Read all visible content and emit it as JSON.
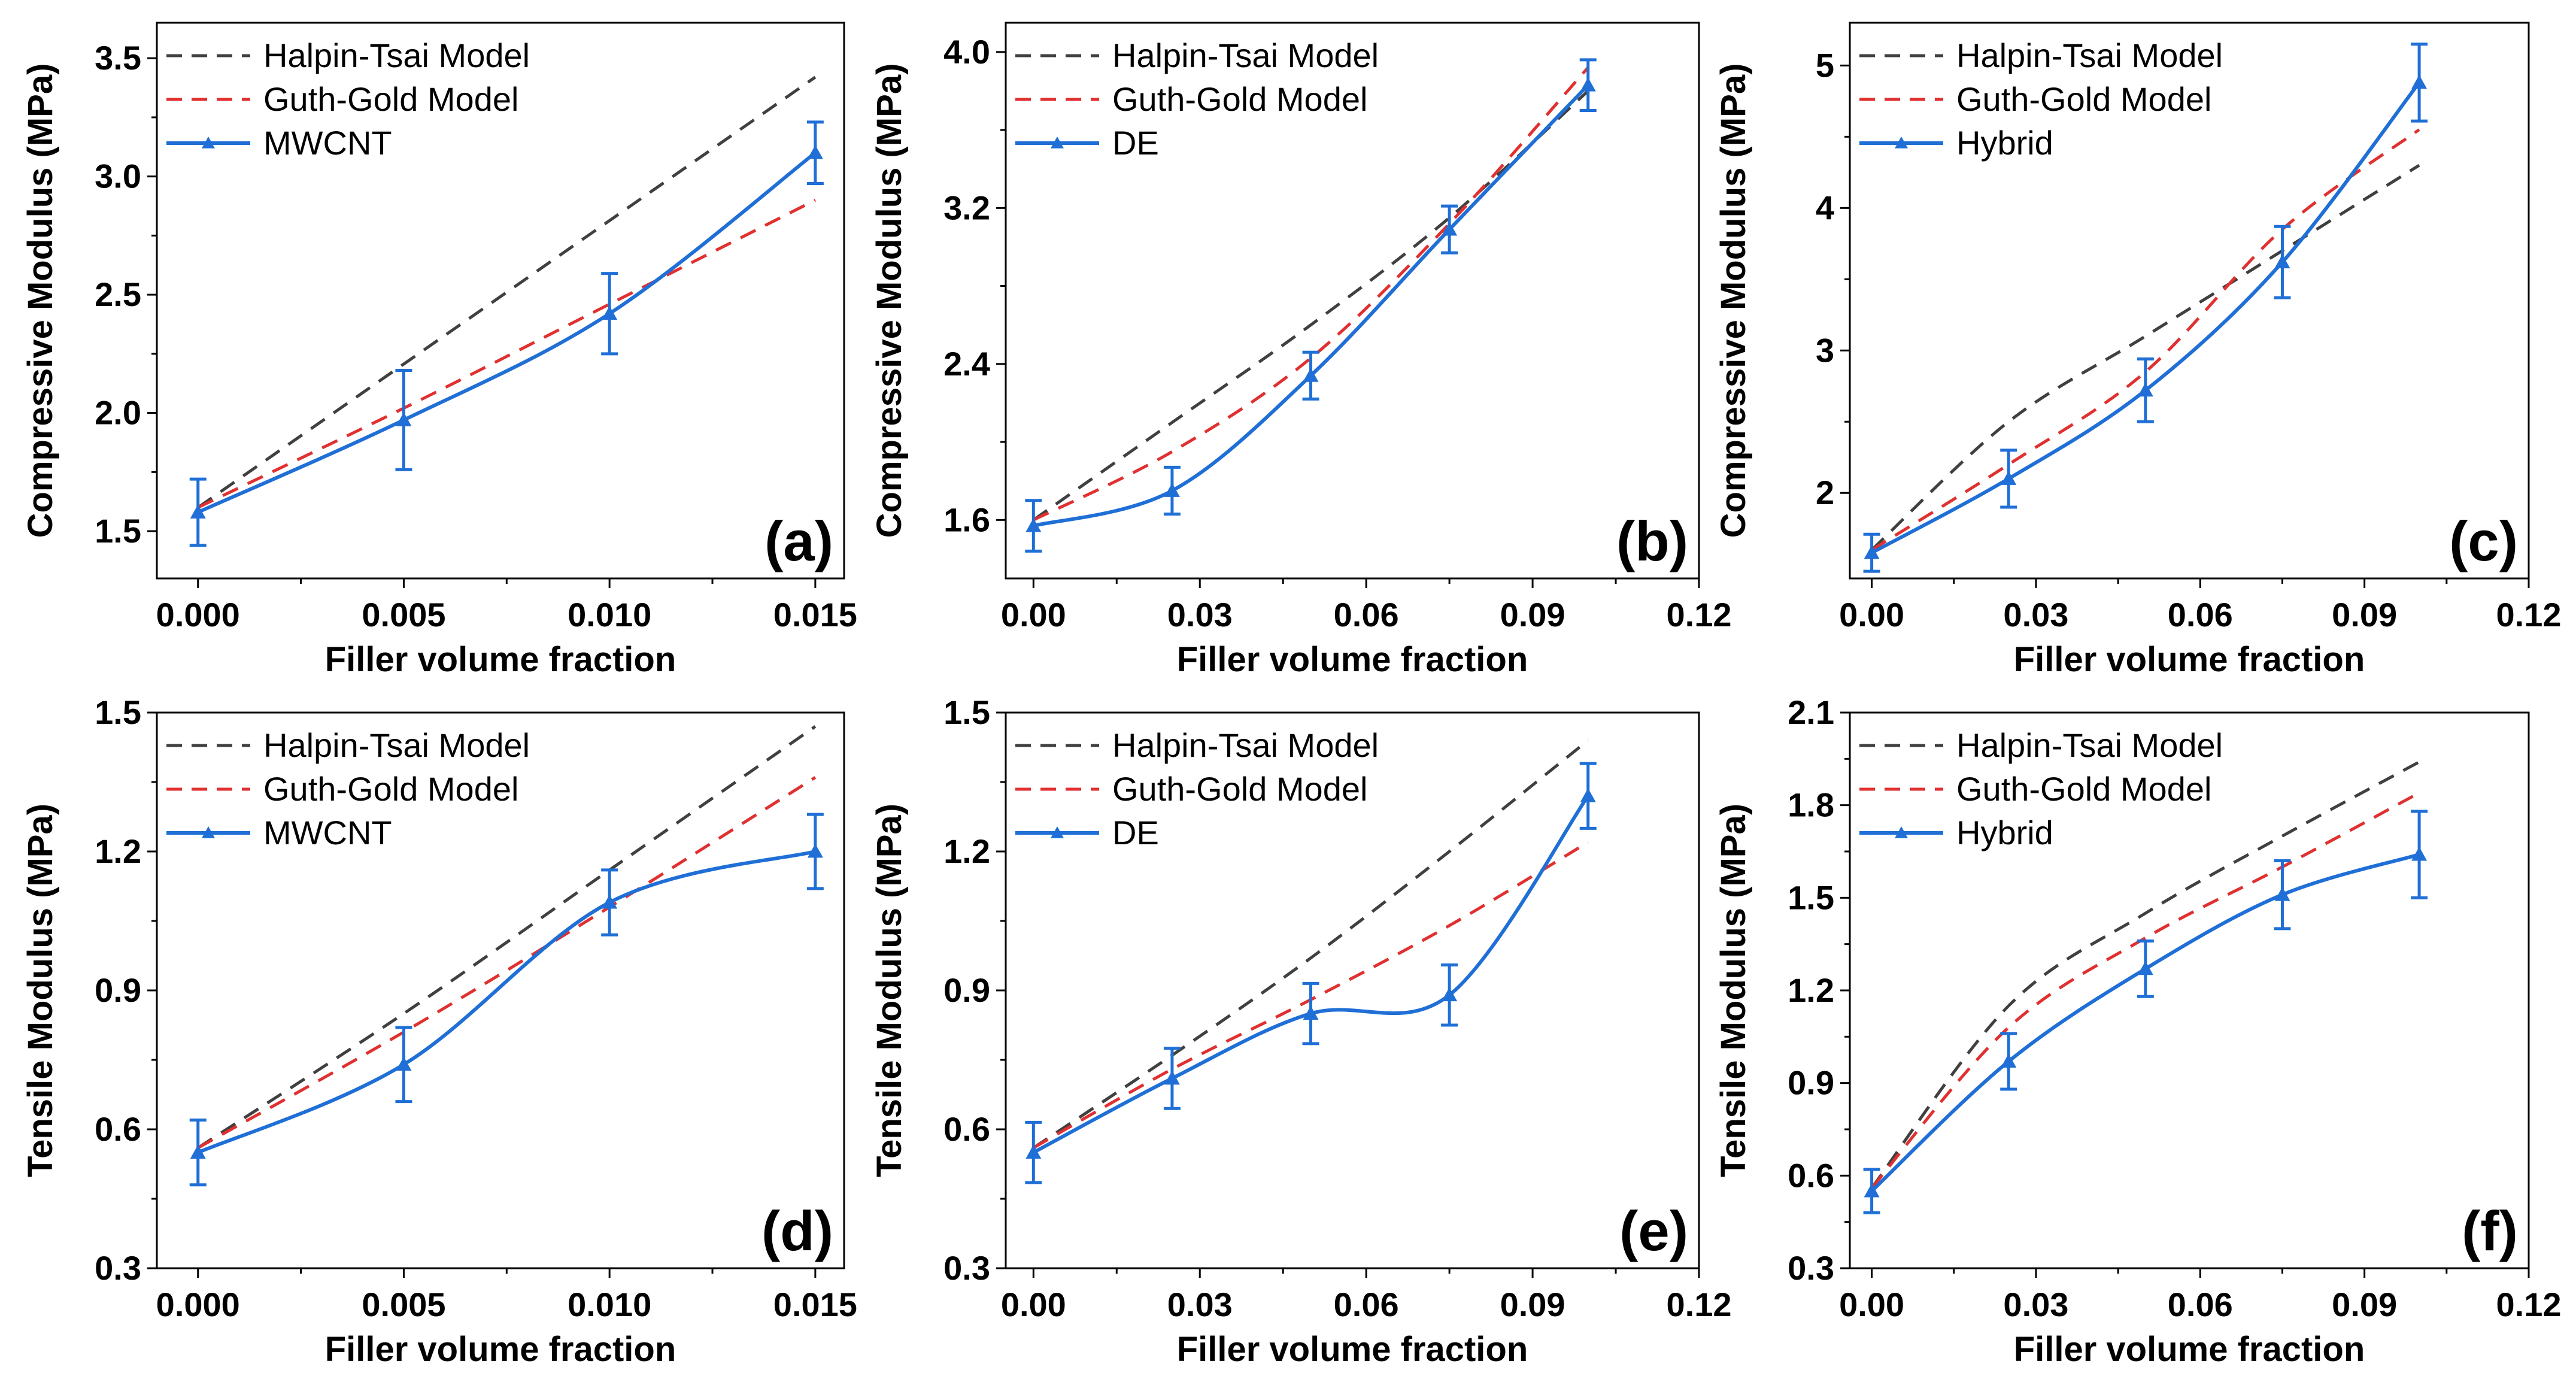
{
  "colors": {
    "halpin": "#404040",
    "guth": "#e03030",
    "data": "#1f6fd6",
    "axis": "#000000"
  },
  "chart_data": [
    {
      "type": "line",
      "panel": "(a)",
      "xlabel": "Filler volume fraction",
      "ylabel": "Compressive Modulus (MPa)",
      "xlim": [
        -0.001,
        0.0157
      ],
      "ylim": [
        1.3,
        3.65
      ],
      "xticks": [
        0.0,
        0.005,
        0.01,
        0.015
      ],
      "xtick_labels": [
        "0.000",
        "0.005",
        "0.010",
        "0.015"
      ],
      "yticks": [
        1.5,
        2.0,
        2.5,
        3.0,
        3.5
      ],
      "ytick_labels": [
        "1.5",
        "2.0",
        "2.5",
        "3.0",
        "3.5"
      ],
      "legend": [
        "Halpin-Tsai Model",
        "Guth-Gold Model",
        "MWCNT"
      ],
      "halpin": {
        "x": [
          0,
          0.015
        ],
        "y": [
          1.6,
          3.42
        ]
      },
      "guth": {
        "x": [
          0,
          0.005,
          0.01,
          0.015
        ],
        "y": [
          1.6,
          2.02,
          2.46,
          2.9
        ]
      },
      "data": {
        "x": [
          0,
          0.005,
          0.01,
          0.015
        ],
        "y": [
          1.58,
          1.97,
          2.42,
          3.1
        ],
        "err": [
          0.14,
          0.21,
          0.17,
          0.13
        ]
      }
    },
    {
      "type": "line",
      "panel": "(b)",
      "xlabel": "Filler volume fraction",
      "ylabel": "Compressive Modulus (MPa)",
      "xlim": [
        -0.005,
        0.12
      ],
      "ylim": [
        1.3,
        4.15
      ],
      "xticks": [
        0,
        0.03,
        0.06,
        0.09,
        0.12
      ],
      "xtick_labels": [
        "0.00",
        "0.03",
        "0.06",
        "0.09",
        "0.12"
      ],
      "yticks": [
        1.6,
        2.4,
        3.2,
        4.0
      ],
      "ytick_labels": [
        "1.6",
        "2.4",
        "3.2",
        "4.0"
      ],
      "legend": [
        "Halpin-Tsai Model",
        "Guth-Gold Model",
        "DE"
      ],
      "halpin": {
        "x": [
          0,
          0.025,
          0.05,
          0.075,
          0.1
        ],
        "y": [
          1.6,
          2.1,
          2.6,
          3.15,
          3.8
        ]
      },
      "guth": {
        "x": [
          0,
          0.025,
          0.05,
          0.075,
          0.1
        ],
        "y": [
          1.6,
          1.95,
          2.43,
          3.12,
          3.92
        ]
      },
      "data": {
        "x": [
          0,
          0.025,
          0.05,
          0.075,
          0.1
        ],
        "y": [
          1.57,
          1.75,
          2.34,
          3.09,
          3.83
        ],
        "err": [
          0.13,
          0.12,
          0.12,
          0.12,
          0.13
        ]
      }
    },
    {
      "type": "line",
      "panel": "(c)",
      "xlabel": "Filler volume fraction",
      "ylabel": "Compressive Modulus (MPa)",
      "xlim": [
        -0.004,
        0.12
      ],
      "ylim": [
        1.4,
        5.3
      ],
      "xticks": [
        0,
        0.03,
        0.06,
        0.09,
        0.12
      ],
      "xtick_labels": [
        "0.00",
        "0.03",
        "0.06",
        "0.09",
        "0.12"
      ],
      "yticks": [
        2,
        3,
        4,
        5
      ],
      "ytick_labels": [
        "2",
        "3",
        "4",
        "5"
      ],
      "legend": [
        "Halpin-Tsai Model",
        "Guth-Gold Model",
        "Hybrid"
      ],
      "halpin": {
        "x": [
          0,
          0.025,
          0.05,
          0.075,
          0.1
        ],
        "y": [
          1.6,
          2.5,
          3.1,
          3.7,
          4.3
        ]
      },
      "guth": {
        "x": [
          0,
          0.025,
          0.05,
          0.075,
          0.1
        ],
        "y": [
          1.6,
          2.2,
          2.85,
          3.85,
          4.55
        ]
      },
      "data": {
        "x": [
          0,
          0.025,
          0.05,
          0.075,
          0.1
        ],
        "y": [
          1.58,
          2.1,
          2.72,
          3.62,
          4.88
        ],
        "err": [
          0.13,
          0.2,
          0.22,
          0.25,
          0.27
        ]
      }
    },
    {
      "type": "line",
      "panel": "(d)",
      "xlabel": "Filler volume fraction",
      "ylabel": "Tensile Modulus (MPa)",
      "xlim": [
        -0.001,
        0.0157
      ],
      "ylim": [
        0.3,
        1.5
      ],
      "xticks": [
        0.0,
        0.005,
        0.01,
        0.015
      ],
      "xtick_labels": [
        "0.000",
        "0.005",
        "0.010",
        "0.015"
      ],
      "yticks": [
        0.3,
        0.6,
        0.9,
        1.2,
        1.5
      ],
      "ytick_labels": [
        "0.3",
        "0.6",
        "0.9",
        "1.2",
        "1.5"
      ],
      "legend": [
        "Halpin-Tsai Model",
        "Guth-Gold Model",
        "MWCNT"
      ],
      "halpin": {
        "x": [
          0,
          0.005,
          0.01,
          0.015
        ],
        "y": [
          0.56,
          0.85,
          1.16,
          1.47
        ]
      },
      "guth": {
        "x": [
          0,
          0.005,
          0.01,
          0.015
        ],
        "y": [
          0.56,
          0.81,
          1.08,
          1.36
        ]
      },
      "data": {
        "x": [
          0,
          0.005,
          0.01,
          0.015
        ],
        "y": [
          0.55,
          0.74,
          1.09,
          1.2
        ],
        "err": [
          0.07,
          0.08,
          0.07,
          0.08
        ]
      }
    },
    {
      "type": "line",
      "panel": "(e)",
      "xlabel": "Filler volume fraction",
      "ylabel": "Tensile Modulus (MPa)",
      "xlim": [
        -0.005,
        0.12
      ],
      "ylim": [
        0.3,
        1.5
      ],
      "xticks": [
        0,
        0.03,
        0.06,
        0.09,
        0.12
      ],
      "xtick_labels": [
        "0.00",
        "0.03",
        "0.06",
        "0.09",
        "0.12"
      ],
      "yticks": [
        0.3,
        0.6,
        0.9,
        1.2,
        1.5
      ],
      "ytick_labels": [
        "0.3",
        "0.6",
        "0.9",
        "1.2",
        "1.5"
      ],
      "legend": [
        "Halpin-Tsai Model",
        "Guth-Gold Model",
        "DE"
      ],
      "halpin": {
        "x": [
          0,
          0.025,
          0.05,
          0.075,
          0.1
        ],
        "y": [
          0.56,
          0.76,
          0.97,
          1.2,
          1.44
        ]
      },
      "guth": {
        "x": [
          0,
          0.025,
          0.05,
          0.075,
          0.1
        ],
        "y": [
          0.56,
          0.73,
          0.88,
          1.04,
          1.22
        ]
      },
      "data": {
        "x": [
          0,
          0.025,
          0.05,
          0.075,
          0.1
        ],
        "y": [
          0.55,
          0.71,
          0.85,
          0.89,
          1.32
        ],
        "err": [
          0.065,
          0.065,
          0.065,
          0.065,
          0.07
        ]
      }
    },
    {
      "type": "line",
      "panel": "(f)",
      "xlabel": "Filler volume fraction",
      "ylabel": "Tensile Modulus (MPa)",
      "xlim": [
        -0.004,
        0.12
      ],
      "ylim": [
        0.3,
        2.1
      ],
      "xticks": [
        0,
        0.03,
        0.06,
        0.09,
        0.12
      ],
      "xtick_labels": [
        "0.00",
        "0.03",
        "0.06",
        "0.09",
        "0.12"
      ],
      "yticks": [
        0.3,
        0.6,
        0.9,
        1.2,
        1.5,
        1.8,
        2.1
      ],
      "ytick_labels": [
        "0.3",
        "0.6",
        "0.9",
        "1.2",
        "1.5",
        "1.8",
        "2.1"
      ],
      "legend": [
        "Halpin-Tsai Model",
        "Guth-Gold Model",
        "Hybrid"
      ],
      "halpin": {
        "x": [
          0,
          0.025,
          0.05,
          0.075,
          0.1
        ],
        "y": [
          0.56,
          1.15,
          1.45,
          1.7,
          1.94
        ]
      },
      "guth": {
        "x": [
          0,
          0.025,
          0.05,
          0.075,
          0.1
        ],
        "y": [
          0.56,
          1.08,
          1.37,
          1.6,
          1.84
        ]
      },
      "data": {
        "x": [
          0,
          0.025,
          0.05,
          0.075,
          0.1
        ],
        "y": [
          0.55,
          0.97,
          1.27,
          1.51,
          1.64
        ],
        "err": [
          0.07,
          0.09,
          0.09,
          0.11,
          0.14
        ]
      }
    }
  ]
}
